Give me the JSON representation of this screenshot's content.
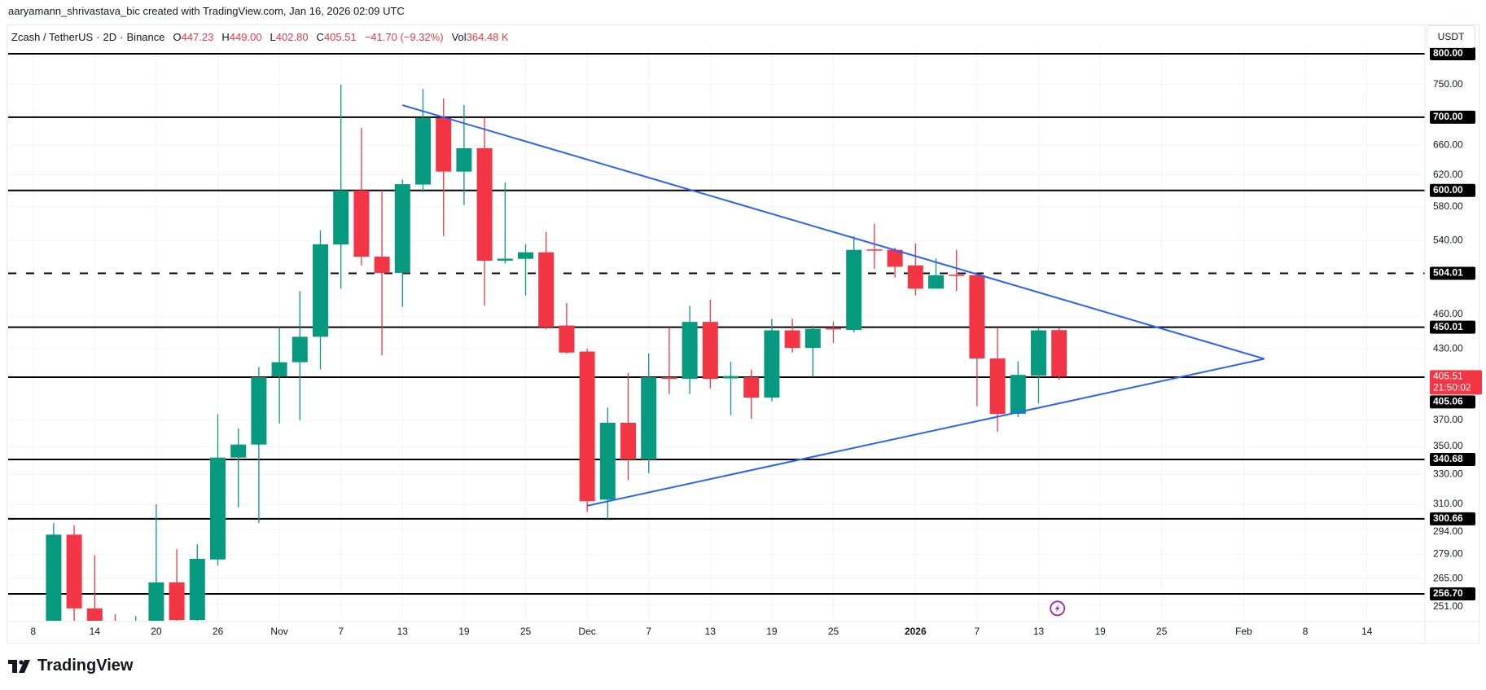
{
  "credit": "aaryamann_shrivastava_bic created with TradingView.com, Jan 16, 2026 02:09 UTC",
  "legend": {
    "symbol": "Zcash / TetherUS",
    "interval": "2D",
    "exchange": "Binance",
    "separator": "·",
    "open_label": "O",
    "open": "447.23",
    "high_label": "H",
    "high": "449.00",
    "low_label": "L",
    "low": "402.80",
    "close_label": "C",
    "close": "405.51",
    "change": "−41.70 (−9.32%)",
    "vol_label": "Vol",
    "vol": "364.48 K"
  },
  "axis": {
    "currency_button": "USDT",
    "last_price": "405.51",
    "countdown": "21:50:02"
  },
  "brand": "TradingView",
  "colors": {
    "up": "#089981",
    "down": "#F23645",
    "trendline": "#2962FF",
    "level": "#000000",
    "event": "#9c27b0"
  },
  "chart_data": {
    "type": "candlestick",
    "scale": "log",
    "ylim": [
      245,
      800
    ],
    "grid": true,
    "x_tick_labels": [
      {
        "label": "8",
        "date": "2025-10-08"
      },
      {
        "label": "14",
        "date": "2025-10-14"
      },
      {
        "label": "20",
        "date": "2025-10-20"
      },
      {
        "label": "26",
        "date": "2025-10-26"
      },
      {
        "label": "Nov",
        "date": "2025-11-01"
      },
      {
        "label": "7",
        "date": "2025-11-07"
      },
      {
        "label": "13",
        "date": "2025-11-13"
      },
      {
        "label": "19",
        "date": "2025-11-19"
      },
      {
        "label": "25",
        "date": "2025-11-25"
      },
      {
        "label": "Dec",
        "date": "2025-12-01"
      },
      {
        "label": "7",
        "date": "2025-12-07"
      },
      {
        "label": "13",
        "date": "2025-12-13"
      },
      {
        "label": "19",
        "date": "2025-12-19"
      },
      {
        "label": "25",
        "date": "2025-12-25"
      },
      {
        "label": "2026",
        "date": "2026-01-01"
      },
      {
        "label": "7",
        "date": "2026-01-07"
      },
      {
        "label": "13",
        "date": "2026-01-13"
      },
      {
        "label": "19",
        "date": "2026-01-19"
      },
      {
        "label": "25",
        "date": "2026-01-25"
      },
      {
        "label": "Feb",
        "date": "2026-02-02"
      },
      {
        "label": "8",
        "date": "2026-02-08"
      },
      {
        "label": "14",
        "date": "2026-02-14"
      }
    ],
    "y_tick_labels": [
      "750.00",
      "660.00",
      "620.00",
      "580.00",
      "540.00",
      "460.00",
      "430.00",
      "370.00",
      "350.00",
      "330.00",
      "310.00",
      "294.00",
      "279.00",
      "265.00",
      "251.00"
    ],
    "levels": [
      {
        "price": 800.0,
        "label": "800.00",
        "style": "solid"
      },
      {
        "price": 700.0,
        "label": "700.00",
        "style": "solid"
      },
      {
        "price": 600.0,
        "label": "600.00",
        "style": "solid"
      },
      {
        "price": 504.01,
        "label": "504.01",
        "style": "dashed"
      },
      {
        "price": 450.01,
        "label": "450.01",
        "style": "solid"
      },
      {
        "price": 405.06,
        "label": "405.06",
        "style": "solid"
      },
      {
        "price": 340.68,
        "label": "340.68",
        "style": "solid"
      },
      {
        "price": 300.66,
        "label": "300.66",
        "style": "solid"
      },
      {
        "price": 256.7,
        "label": "256.70",
        "style": "solid"
      }
    ],
    "trendlines": [
      {
        "from": {
          "date": "2025-11-13",
          "price": 718
        },
        "to": {
          "date": "2026-02-04",
          "price": 421
        }
      },
      {
        "from": {
          "date": "2025-12-01",
          "price": 309
        },
        "to": {
          "date": "2026-02-04",
          "price": 421
        }
      }
    ],
    "candles": [
      {
        "date": "2025-10-10",
        "o": 240,
        "h": 298,
        "l": 235,
        "c": 290.8
      },
      {
        "date": "2025-10-12",
        "o": 290.8,
        "h": 296.6,
        "l": 238,
        "c": 249
      },
      {
        "date": "2025-10-14",
        "o": 249,
        "h": 278.4,
        "l": 236,
        "c": 242
      },
      {
        "date": "2025-10-16",
        "o": 242,
        "h": 246,
        "l": 232,
        "c": 238
      },
      {
        "date": "2025-10-18",
        "o": 236,
        "h": 245,
        "l": 230,
        "c": 241
      },
      {
        "date": "2025-10-20",
        "o": 240,
        "h": 310,
        "l": 236,
        "c": 263
      },
      {
        "date": "2025-10-22",
        "o": 263,
        "h": 282,
        "l": 238,
        "c": 243
      },
      {
        "date": "2025-10-24",
        "o": 243,
        "h": 285,
        "l": 240,
        "c": 276.4
      },
      {
        "date": "2025-10-26",
        "o": 276,
        "h": 374.7,
        "l": 272.6,
        "c": 342
      },
      {
        "date": "2025-10-28",
        "o": 342,
        "h": 363.6,
        "l": 308,
        "c": 351.5
      },
      {
        "date": "2025-10-30",
        "o": 351.5,
        "h": 413.8,
        "l": 298,
        "c": 405
      },
      {
        "date": "2025-11-01",
        "o": 405.6,
        "h": 450,
        "l": 367.4,
        "c": 418
      },
      {
        "date": "2025-11-03",
        "o": 418,
        "h": 485.5,
        "l": 370,
        "c": 441
      },
      {
        "date": "2025-11-05",
        "o": 441,
        "h": 551.6,
        "l": 411.6,
        "c": 535.8
      },
      {
        "date": "2025-11-07",
        "o": 535.5,
        "h": 749.5,
        "l": 488,
        "c": 600
      },
      {
        "date": "2025-11-09",
        "o": 600,
        "h": 684.6,
        "l": 512.5,
        "c": 522
      },
      {
        "date": "2025-11-11",
        "o": 522,
        "h": 600,
        "l": 424,
        "c": 504.5
      },
      {
        "date": "2025-11-13",
        "o": 504.5,
        "h": 613.8,
        "l": 469.6,
        "c": 608
      },
      {
        "date": "2025-11-15",
        "o": 607.5,
        "h": 743,
        "l": 598,
        "c": 699
      },
      {
        "date": "2025-11-17",
        "o": 699,
        "h": 728,
        "l": 545,
        "c": 624.3
      },
      {
        "date": "2025-11-19",
        "o": 624.3,
        "h": 718,
        "l": 582,
        "c": 655.8
      },
      {
        "date": "2025-11-21",
        "o": 655.8,
        "h": 699,
        "l": 470.6,
        "c": 517.5
      },
      {
        "date": "2025-11-23",
        "o": 517.5,
        "h": 610,
        "l": 514.4,
        "c": 519.8
      },
      {
        "date": "2025-11-25",
        "o": 519.6,
        "h": 535.8,
        "l": 481,
        "c": 526.8
      },
      {
        "date": "2025-11-27",
        "o": 526.8,
        "h": 550,
        "l": 448,
        "c": 450
      },
      {
        "date": "2025-11-29",
        "o": 451.6,
        "h": 473.5,
        "l": 425.7,
        "c": 426.6
      },
      {
        "date": "2025-12-01",
        "o": 427.5,
        "h": 430,
        "l": 305,
        "c": 312
      },
      {
        "date": "2025-12-03",
        "o": 313,
        "h": 380,
        "l": 300.7,
        "c": 368
      },
      {
        "date": "2025-12-05",
        "o": 368,
        "h": 408.6,
        "l": 326,
        "c": 340.7
      },
      {
        "date": "2025-12-07",
        "o": 340.7,
        "h": 425.7,
        "l": 331,
        "c": 405
      },
      {
        "date": "2025-12-09",
        "o": 405,
        "h": 450,
        "l": 391,
        "c": 403.6
      },
      {
        "date": "2025-12-11",
        "o": 403.6,
        "h": 470.6,
        "l": 391,
        "c": 455
      },
      {
        "date": "2025-12-13",
        "o": 455,
        "h": 477,
        "l": 395.6,
        "c": 403.6
      },
      {
        "date": "2025-12-15",
        "o": 404,
        "h": 418.5,
        "l": 374,
        "c": 406
      },
      {
        "date": "2025-12-17",
        "o": 405,
        "h": 411.6,
        "l": 371,
        "c": 388
      },
      {
        "date": "2025-12-19",
        "o": 388,
        "h": 458,
        "l": 385,
        "c": 447
      },
      {
        "date": "2025-12-21",
        "o": 447,
        "h": 458,
        "l": 426.6,
        "c": 430.8
      },
      {
        "date": "2025-12-23",
        "o": 430.8,
        "h": 451.6,
        "l": 405.3,
        "c": 448.4
      },
      {
        "date": "2025-12-25",
        "o": 449,
        "h": 455.6,
        "l": 435.2,
        "c": 448
      },
      {
        "date": "2025-12-27",
        "o": 447.4,
        "h": 545,
        "l": 445,
        "c": 529.5
      },
      {
        "date": "2025-12-29",
        "o": 530,
        "h": 559.4,
        "l": 508.8,
        "c": 529
      },
      {
        "date": "2025-12-31",
        "o": 529.5,
        "h": 532,
        "l": 499.5,
        "c": 511
      },
      {
        "date": "2026-01-01",
        "o": 512.5,
        "h": 536.7,
        "l": 481,
        "c": 488
      },
      {
        "date": "2026-01-03",
        "o": 488,
        "h": 520,
        "l": 488,
        "c": 502
      },
      {
        "date": "2026-01-05",
        "o": 502.5,
        "h": 529.5,
        "l": 485.5,
        "c": 502
      },
      {
        "date": "2026-01-07",
        "o": 502,
        "h": 505,
        "l": 381,
        "c": 421.3
      },
      {
        "date": "2026-01-09",
        "o": 421.3,
        "h": 450,
        "l": 361,
        "c": 374.9
      },
      {
        "date": "2026-01-11",
        "o": 375,
        "h": 418.7,
        "l": 372.5,
        "c": 407
      },
      {
        "date": "2026-01-13",
        "o": 406.3,
        "h": 450,
        "l": 383.5,
        "c": 447
      },
      {
        "date": "2026-01-15",
        "o": 447.23,
        "h": 449,
        "l": 402.8,
        "c": 405.51
      }
    ]
  }
}
